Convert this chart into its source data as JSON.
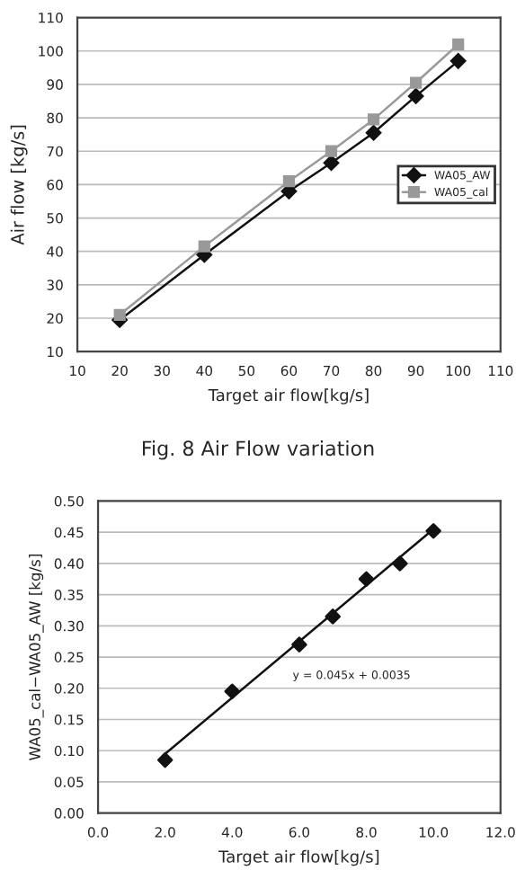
{
  "chart_data": [
    {
      "type": "line",
      "xlabel": "Target air flow[kg/s]",
      "ylabel": "Air flow [kg/s]",
      "x": [
        20,
        40,
        60,
        70,
        80,
        90,
        100
      ],
      "series": [
        {
          "name": "WA05_AW",
          "color": "#111111",
          "marker": "diamond",
          "values": [
            19.5,
            39,
            58,
            66.5,
            75.5,
            86.5,
            97
          ]
        },
        {
          "name": "WA05_cal",
          "color": "#999999",
          "marker": "square",
          "values": [
            21,
            41.5,
            61,
            70,
            79.5,
            90.5,
            102
          ]
        }
      ],
      "xlim": [
        10,
        110
      ],
      "xticks": [
        10,
        20,
        30,
        40,
        50,
        60,
        70,
        80,
        90,
        100,
        110
      ],
      "ylim": [
        10,
        110
      ],
      "yticks": [
        10,
        20,
        30,
        40,
        50,
        60,
        70,
        80,
        90,
        100,
        110
      ],
      "grid": "y",
      "legend": "right",
      "annotations": [
        "Fig. 8 Air Flow variation"
      ]
    },
    {
      "type": "scatter",
      "xlabel": "Target air flow[kg/s]",
      "ylabel": "WA05_cal−WA05_AW [kg/s]",
      "x": [
        2,
        4,
        6,
        7,
        8,
        9,
        10
      ],
      "series": [
        {
          "color": "#111111",
          "marker": "diamond",
          "values": [
            0.085,
            0.195,
            0.27,
            0.315,
            0.375,
            0.4,
            0.452
          ]
        },
        {
          "type": "line",
          "color": "#111111",
          "x": [
            2,
            10
          ],
          "values": [
            0.095,
            0.455
          ]
        }
      ],
      "xlim": [
        0,
        12
      ],
      "xticks": [
        {
          "value": 0,
          "label": "0.0"
        },
        {
          "value": 2,
          "label": "2.0"
        },
        {
          "value": 4,
          "label": "4.0"
        },
        {
          "value": 6,
          "label": "6.0"
        },
        {
          "value": 8,
          "label": "8.0"
        },
        {
          "value": 10,
          "label": "10.0"
        },
        {
          "value": 12,
          "label": "12.0"
        }
      ],
      "ylim": [
        0,
        0.5
      ],
      "yticks": [
        {
          "value": 0,
          "label": "0.00"
        },
        {
          "value": 0.05,
          "label": "0.05"
        },
        {
          "value": 0.1,
          "label": "0.10"
        },
        {
          "value": 0.15,
          "label": "0.15"
        },
        {
          "value": 0.2,
          "label": "0.20"
        },
        {
          "value": 0.25,
          "label": "0.25"
        },
        {
          "value": 0.3,
          "label": "0.30"
        },
        {
          "value": 0.35,
          "label": "0.35"
        },
        {
          "value": 0.4,
          "label": "0.40"
        },
        {
          "value": 0.45,
          "label": "0.45"
        },
        {
          "value": 0.5,
          "label": "0.50"
        }
      ],
      "grid": "y",
      "annotations": [
        "y = 0.045x + 0.0035"
      ]
    }
  ]
}
